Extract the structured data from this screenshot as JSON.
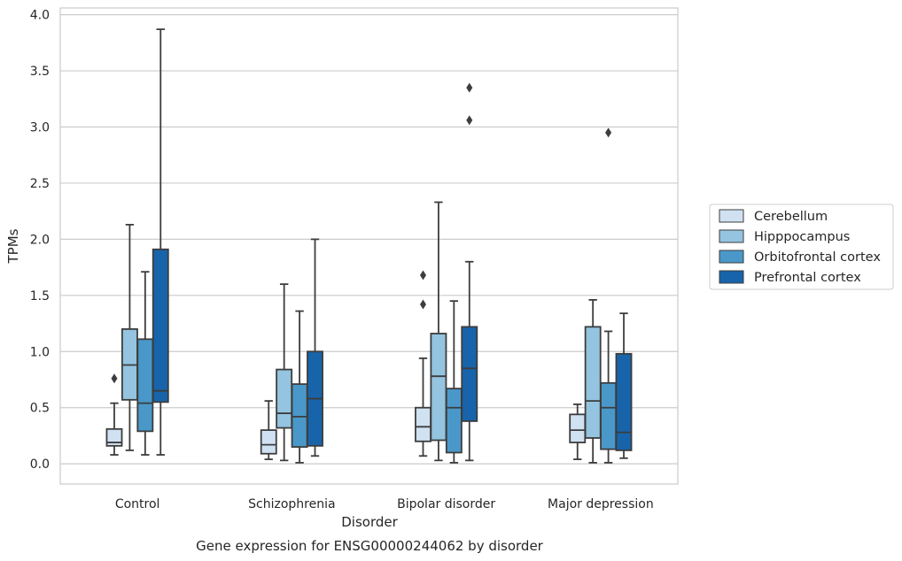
{
  "chart_data": {
    "type": "boxplot",
    "title": "",
    "caption": "Gene expression for ENSG00000244062 by disorder",
    "xlabel": "Disorder",
    "ylabel": "TPMs",
    "ylim": [
      -0.18,
      4.06
    ],
    "yticks": [
      "0.0",
      "0.5",
      "1.0",
      "1.5",
      "2.0",
      "2.5",
      "3.0",
      "3.5",
      "4.0"
    ],
    "ytick_values": [
      0,
      0.5,
      1.0,
      1.5,
      2.0,
      2.5,
      3.0,
      3.5,
      4.0
    ],
    "grid": "horizontal",
    "legend_position": "right",
    "categories": [
      "Control",
      "Schizophrenia",
      "Bipolar disorder",
      "Major depression"
    ],
    "series": [
      {
        "name": "Cerebellum",
        "color": "#d0e1f2",
        "boxes": [
          {
            "whislo": 0.08,
            "q1": 0.16,
            "med": 0.19,
            "q3": 0.31,
            "whishi": 0.54,
            "fliers": [
              0.76
            ]
          },
          {
            "whislo": 0.04,
            "q1": 0.09,
            "med": 0.17,
            "q3": 0.3,
            "whishi": 0.56,
            "fliers": []
          },
          {
            "whislo": 0.07,
            "q1": 0.2,
            "med": 0.33,
            "q3": 0.5,
            "whishi": 0.94,
            "fliers": [
              1.42,
              1.68
            ]
          },
          {
            "whislo": 0.04,
            "q1": 0.19,
            "med": 0.3,
            "q3": 0.44,
            "whishi": 0.53,
            "fliers": []
          }
        ]
      },
      {
        "name": "Hipppocampus",
        "color": "#94c4df",
        "boxes": [
          {
            "whislo": 0.12,
            "q1": 0.57,
            "med": 0.88,
            "q3": 1.2,
            "whishi": 2.13,
            "fliers": []
          },
          {
            "whislo": 0.03,
            "q1": 0.32,
            "med": 0.45,
            "q3": 0.84,
            "whishi": 1.6,
            "fliers": []
          },
          {
            "whislo": 0.03,
            "q1": 0.21,
            "med": 0.78,
            "q3": 1.16,
            "whishi": 2.33,
            "fliers": []
          },
          {
            "whislo": 0.01,
            "q1": 0.23,
            "med": 0.56,
            "q3": 1.22,
            "whishi": 1.46,
            "fliers": []
          }
        ]
      },
      {
        "name": "Orbitofrontal cortex",
        "color": "#4a98c9",
        "boxes": [
          {
            "whislo": 0.08,
            "q1": 0.29,
            "med": 0.54,
            "q3": 1.11,
            "whishi": 1.71,
            "fliers": []
          },
          {
            "whislo": 0.01,
            "q1": 0.15,
            "med": 0.42,
            "q3": 0.71,
            "whishi": 1.36,
            "fliers": []
          },
          {
            "whislo": 0.01,
            "q1": 0.1,
            "med": 0.5,
            "q3": 0.67,
            "whishi": 1.45,
            "fliers": []
          },
          {
            "whislo": 0.01,
            "q1": 0.13,
            "med": 0.5,
            "q3": 0.72,
            "whishi": 1.18,
            "fliers": [
              2.95
            ]
          }
        ]
      },
      {
        "name": "Prefrontal cortex",
        "color": "#1764ab",
        "boxes": [
          {
            "whislo": 0.08,
            "q1": 0.55,
            "med": 0.65,
            "q3": 1.91,
            "whishi": 3.87,
            "fliers": []
          },
          {
            "whislo": 0.07,
            "q1": 0.16,
            "med": 0.58,
            "q3": 1.0,
            "whishi": 2.0,
            "fliers": []
          },
          {
            "whislo": 0.03,
            "q1": 0.38,
            "med": 0.85,
            "q3": 1.22,
            "whishi": 1.8,
            "fliers": [
              3.06,
              3.35
            ]
          },
          {
            "whislo": 0.05,
            "q1": 0.12,
            "med": 0.28,
            "q3": 0.98,
            "whishi": 1.34,
            "fliers": []
          }
        ]
      }
    ]
  }
}
